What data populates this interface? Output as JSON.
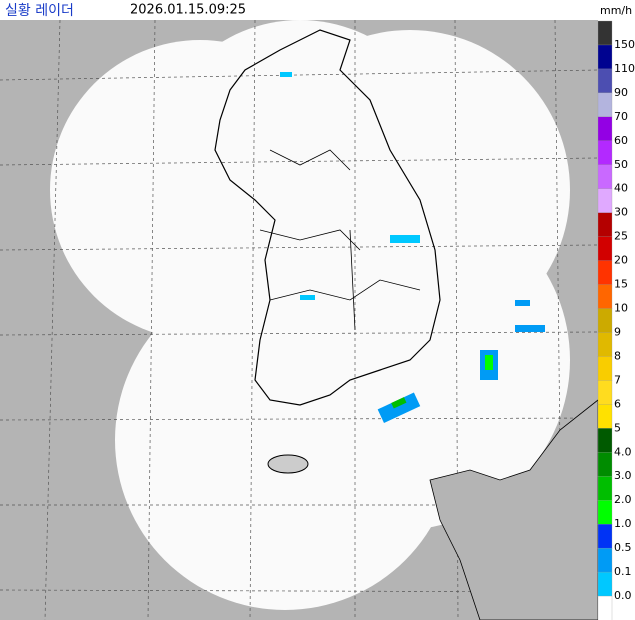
{
  "header": {
    "title": "실황 레이더",
    "time": "2026.01.15.09:25",
    "unit": "mm/h"
  },
  "legend": {
    "labels": [
      "150",
      "110",
      "90",
      "70",
      "60",
      "50",
      "40",
      "30",
      "25",
      "20",
      "15",
      "10",
      "9",
      "8",
      "7",
      "6",
      "5",
      "4.0",
      "3.0",
      "2.0",
      "1.0",
      "0.5",
      "0.1",
      "0.0"
    ],
    "colors": [
      "#333333",
      "#000390",
      "#4c4eb1",
      "#b3b4de",
      "#9300e4",
      "#b329ff",
      "#c969ff",
      "#e0a9ff",
      "#b40000",
      "#d20000",
      "#ff3300",
      "#ff6600",
      "#ccaa00",
      "#e0b900",
      "#f9cd00",
      "#ffdc1f",
      "#ffe100",
      "#005a00",
      "#008c00",
      "#00be00",
      "#00ff00",
      "#0033f5",
      "#009bf5",
      "#00c8ff",
      "#ffffff"
    ]
  }
}
